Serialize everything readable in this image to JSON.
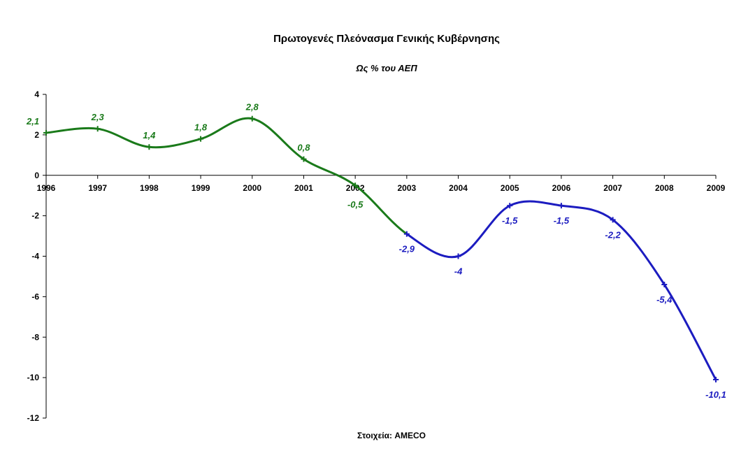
{
  "chart_data": {
    "type": "line",
    "title": "Πρωτογενές Πλεόνασμα Γενικής Κυβέρνησης",
    "subtitle": "Ως % του ΑΕΠ",
    "source": "Στοιχεία: AMECO",
    "xlabel": "",
    "ylabel": "",
    "x": [
      "1996",
      "1997",
      "1998",
      "1999",
      "2000",
      "2001",
      "2002",
      "2003",
      "2004",
      "2005",
      "2006",
      "2007",
      "2008",
      "2009"
    ],
    "ylim": [
      -12,
      4
    ],
    "yticks": [
      4,
      2,
      0,
      -2,
      -4,
      -6,
      -8,
      -10,
      -12
    ],
    "grid": false,
    "legend": "none",
    "series": [
      {
        "values": [
          2.1,
          2.3,
          1.4,
          1.8,
          2.8,
          0.8,
          -0.5,
          -2.9,
          -4,
          -1.5,
          -1.5,
          -2.2,
          -5.4,
          -10.1
        ],
        "labels": [
          "2,1",
          "2,3",
          "1,4",
          "1,8",
          "2,8",
          "0,8",
          "-0,5",
          "-2,9",
          "-4",
          "-1,5",
          "-1,5",
          "-2,2",
          "-5,4",
          "-10,1"
        ],
        "segments": [
          {
            "from": 0,
            "to": 7,
            "color": "#1a7a1a"
          },
          {
            "from": 7,
            "to": 13,
            "color": "#1c1cc0"
          }
        ]
      }
    ]
  }
}
